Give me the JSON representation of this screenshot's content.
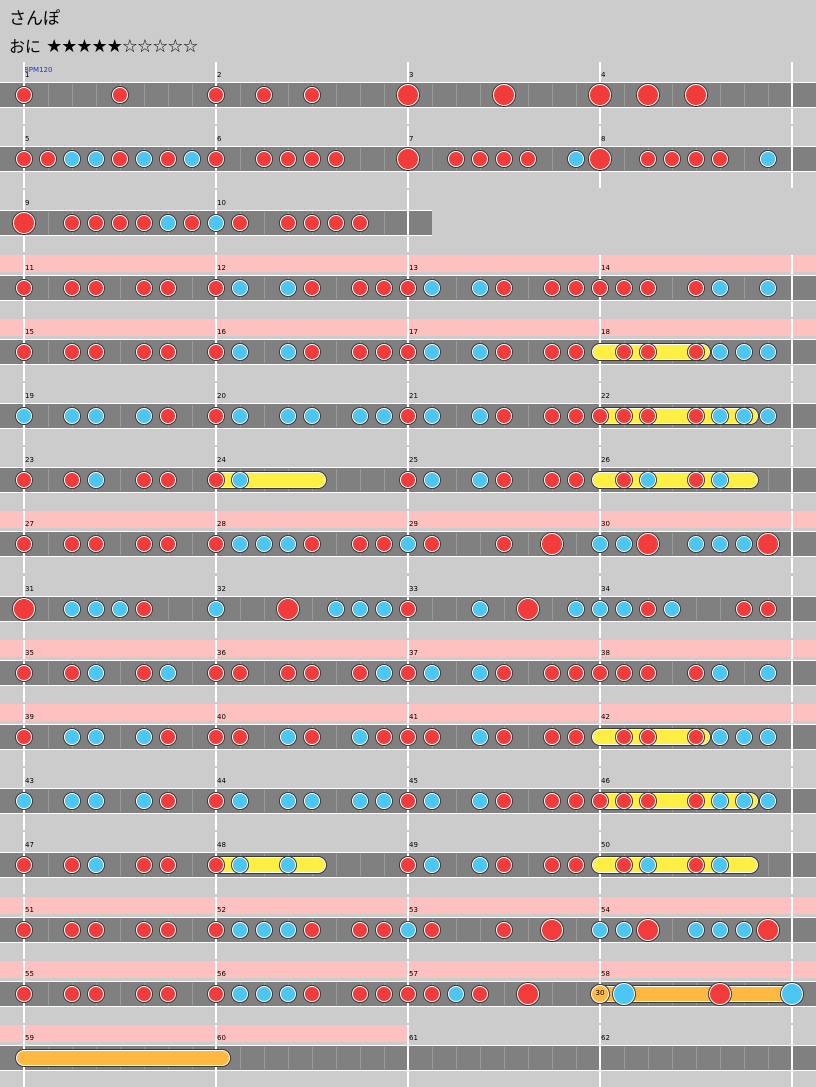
{
  "song": {
    "title": "さんぽ",
    "difficulty": "おに",
    "stars_filled": "★★★★★",
    "stars_empty": "☆☆☆☆☆"
  },
  "bpm_label": "BPM120",
  "balloon_count": "30",
  "colors": {
    "don": "#f23c3c",
    "ka": "#4cc6f2",
    "drumroll": "#ffee44",
    "balloon": "#ffb840",
    "gogo": "#ffc0c0",
    "lane": "#808080"
  },
  "rows": [
    {
      "measures": [
        {
          "num": "1",
          "notes": "D.......D.......D...D...D......."
        },
        {
          "num": "2",
          "notes": ""
        },
        {
          "num": "3",
          "notes": "B.......B.......B...B...B......."
        },
        {
          "num": "4",
          "notes": ""
        }
      ]
    },
    {
      "measures": [
        {
          "num": "5",
          "notes": "d.d.k.k.d.k.d.k.d...d.d.d.d....."
        },
        {
          "num": "6",
          "notes": ""
        },
        {
          "num": "7",
          "notes": "B...d.d.d.d...k.B...d.d.d.d...k."
        },
        {
          "num": "8",
          "notes": ""
        }
      ]
    },
    {
      "measures": [
        {
          "num": "9",
          "notes": "B...d.d.d.d.k.d.k.d...d.d.d.d..."
        },
        {
          "num": "10",
          "notes": ""
        }
      ]
    },
    {
      "gogo": true,
      "measures": [
        {
          "num": "11",
          "notes": "d...d.d...d.d...d.k...k.d...d.d."
        },
        {
          "num": "12",
          "notes": ""
        },
        {
          "num": "13",
          "notes": "d.k...k.d...d.d.d.d.d...d.k...k."
        },
        {
          "num": "14",
          "notes": ""
        }
      ]
    },
    {
      "gogo": true,
      "measures": [
        {
          "num": "15",
          "notes": "d...d.d...d.d...d.k...k.d...d.d."
        },
        {
          "num": "16",
          "notes": ""
        },
        {
          "num": "17",
          "notes": "d.k...k.d...d.d...d.d...d.k.k.k."
        },
        {
          "num": "18",
          "notes": ""
        }
      ]
    },
    {
      "measures": [
        {
          "num": "19",
          "notes": "k...k.k...k.d...d.k...k.k...k.k."
        },
        {
          "num": "20",
          "notes": ""
        },
        {
          "num": "21",
          "notes": "d.k...k.d...d.d.d.d.d...d.k.k.k."
        },
        {
          "num": "22",
          "notes": ""
        }
      ]
    },
    {
      "measures": [
        {
          "num": "23",
          "notes": "d...d.k...d.d...d.k............"
        },
        {
          "num": "24",
          "notes": ""
        },
        {
          "num": "25",
          "notes": "d.k...k.d...d.d...d.k...d.k....."
        },
        {
          "num": "26",
          "notes": ""
        }
      ]
    },
    {
      "gogo": true,
      "measures": [
        {
          "num": "27",
          "notes": "d...d.d...d.d...d.k.k.k.d...d.d."
        },
        {
          "num": "28",
          "notes": ""
        },
        {
          "num": "29",
          "notes": "k.d.....d...B...k.k.B...k.k.k.B."
        },
        {
          "num": "30",
          "notes": ""
        }
      ]
    },
    {
      "measures": [
        {
          "num": "31",
          "notes": "B...k.k.k.d.....k.....B...k.k.k."
        },
        {
          "num": "32",
          "notes": ""
        },
        {
          "num": "33",
          "notes": "d.....k...B...k.k.k.d.k.....d.d."
        },
        {
          "num": "34",
          "notes": ""
        }
      ]
    },
    {
      "gogo": true,
      "measures": [
        {
          "num": "35",
          "notes": "d...d.k...d.k...d.d...d.d...d.k."
        },
        {
          "num": "36",
          "notes": ""
        },
        {
          "num": "37",
          "notes": "d.k...k.d...d.d.d.d.d...d.k...k."
        },
        {
          "num": "38",
          "notes": ""
        }
      ]
    },
    {
      "gogo": true,
      "measures": [
        {
          "num": "39",
          "notes": "d...k.k...k.d...d.d...k.d...k.d."
        },
        {
          "num": "40",
          "notes": ""
        },
        {
          "num": "41",
          "notes": "d.d...k.d...d.d...d.d...d.k.k.k."
        },
        {
          "num": "42",
          "notes": ""
        }
      ]
    },
    {
      "measures": [
        {
          "num": "43",
          "notes": "k...k.k...k.d...d.k...k.k...k.k."
        },
        {
          "num": "44",
          "notes": ""
        },
        {
          "num": "45",
          "notes": "d.k...k.d...d.d.d.d.d...d.k.k.k."
        },
        {
          "num": "46",
          "notes": ""
        }
      ]
    },
    {
      "measures": [
        {
          "num": "47",
          "notes": "d...d.k...d.d...d.k...k........."
        },
        {
          "num": "48",
          "notes": ""
        },
        {
          "num": "49",
          "notes": "d.k...k.d...d.d...d.k...d.k....."
        },
        {
          "num": "50",
          "notes": ""
        }
      ]
    },
    {
      "gogo": true,
      "measures": [
        {
          "num": "51",
          "notes": "d...d.d...d.d...d.k.k.k.d...d.d."
        },
        {
          "num": "52",
          "notes": ""
        },
        {
          "num": "53",
          "notes": "k.d.....d...B...k.k.B...k.k.k.B."
        },
        {
          "num": "54",
          "notes": ""
        }
      ]
    },
    {
      "gogo": true,
      "measures": [
        {
          "num": "55",
          "notes": "d...d.d...d.d...d.k.k.k.d...d.d."
        },
        {
          "num": "56",
          "notes": ""
        },
        {
          "num": "57",
          "notes": "d.d.k.d...B.......K.......B.....K"
        },
        {
          "num": "58",
          "notes": ""
        }
      ]
    },
    {
      "gogo": true,
      "measures": [
        {
          "num": "59",
          "notes": ""
        },
        {
          "num": "60",
          "notes": ""
        },
        {
          "num": "61",
          "notes": ""
        },
        {
          "num": "62",
          "notes": ""
        }
      ]
    }
  ]
}
